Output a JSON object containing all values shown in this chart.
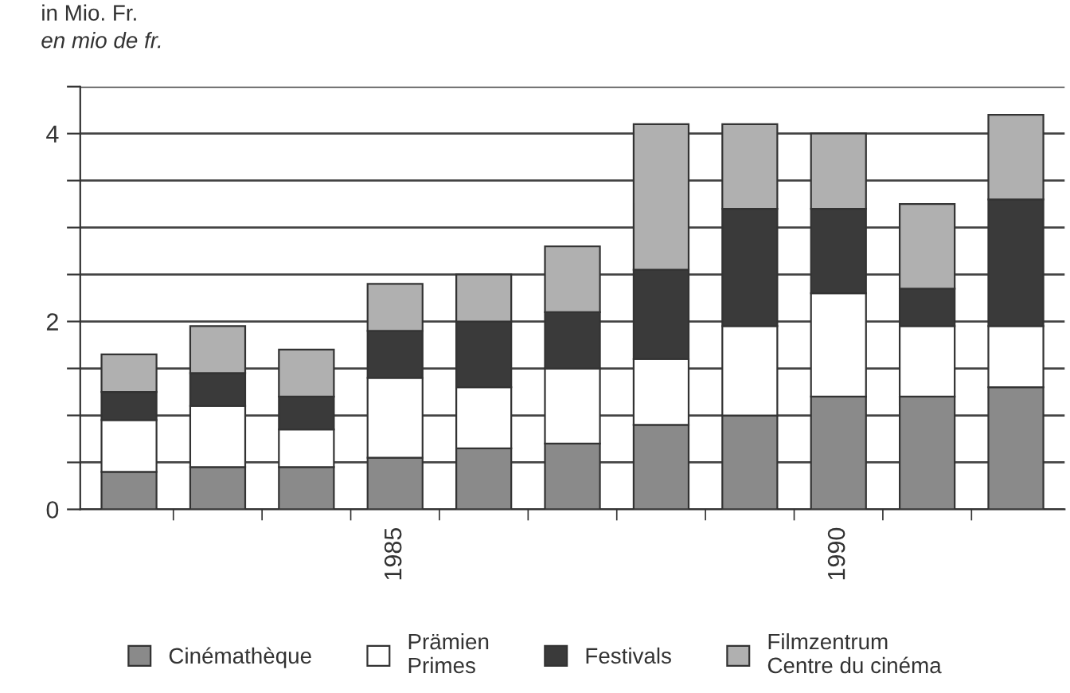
{
  "chart_data": {
    "type": "bar",
    "stacked": true,
    "ylabel": "in Mio. Fr.\nen mio de fr.",
    "categories": [
      null,
      null,
      null,
      "1985",
      null,
      null,
      null,
      null,
      "1990",
      null,
      null
    ],
    "series": [
      {
        "name": "Cinémathèque",
        "color": "#8a8a8a",
        "values": [
          0.4,
          0.45,
          0.45,
          0.55,
          0.65,
          0.7,
          0.9,
          1.0,
          1.2,
          1.2,
          1.3
        ]
      },
      {
        "name": "Prämien\nPrimes",
        "color": "#ffffff",
        "values": [
          0.55,
          0.65,
          0.4,
          0.85,
          0.65,
          0.8,
          0.7,
          0.95,
          1.1,
          0.75,
          0.65
        ]
      },
      {
        "name": "Festivals",
        "color": "#3a3a3a",
        "values": [
          0.3,
          0.35,
          0.35,
          0.5,
          0.7,
          0.6,
          0.95,
          1.25,
          0.9,
          0.4,
          1.35
        ]
      },
      {
        "name": "Filmzentrum\nCentre du cinéma",
        "color": "#b0b0b0",
        "values": [
          0.4,
          0.5,
          0.5,
          0.5,
          0.5,
          0.7,
          1.55,
          0.9,
          0.8,
          0.9,
          0.9
        ]
      }
    ],
    "ylim": [
      0,
      4.5
    ],
    "yticks": [
      0,
      {
        "value": 0.5,
        "label": null
      },
      {
        "value": 1,
        "label": null
      },
      {
        "value": 1.5,
        "label": null
      },
      2,
      {
        "value": 2.5,
        "label": null
      },
      {
        "value": 3,
        "label": null
      },
      {
        "value": 3.5,
        "label": null
      },
      4,
      {
        "value": 4.5,
        "label": null
      }
    ],
    "grid": "y",
    "legend": "bottom"
  }
}
